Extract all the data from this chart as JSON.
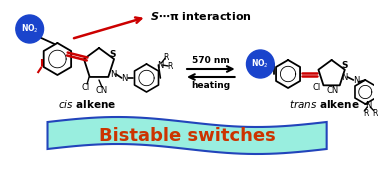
{
  "bg_color": "#ffffff",
  "struct_color": "#000000",
  "red_color": "#cc0000",
  "blue_color": "#1a44cc",
  "banner_fill": "#99eedf",
  "banner_edge": "#2244bb",
  "banner_text": "#cc3300",
  "no2_text": "#ffffff",
  "title_text": "S⋯π interaction",
  "cis_label": "cis",
  "trans_label": "trans",
  "alkene": " alkene",
  "banner_label": "Bistable switches",
  "nm_label": "570 nm",
  "heat_label": "heating"
}
